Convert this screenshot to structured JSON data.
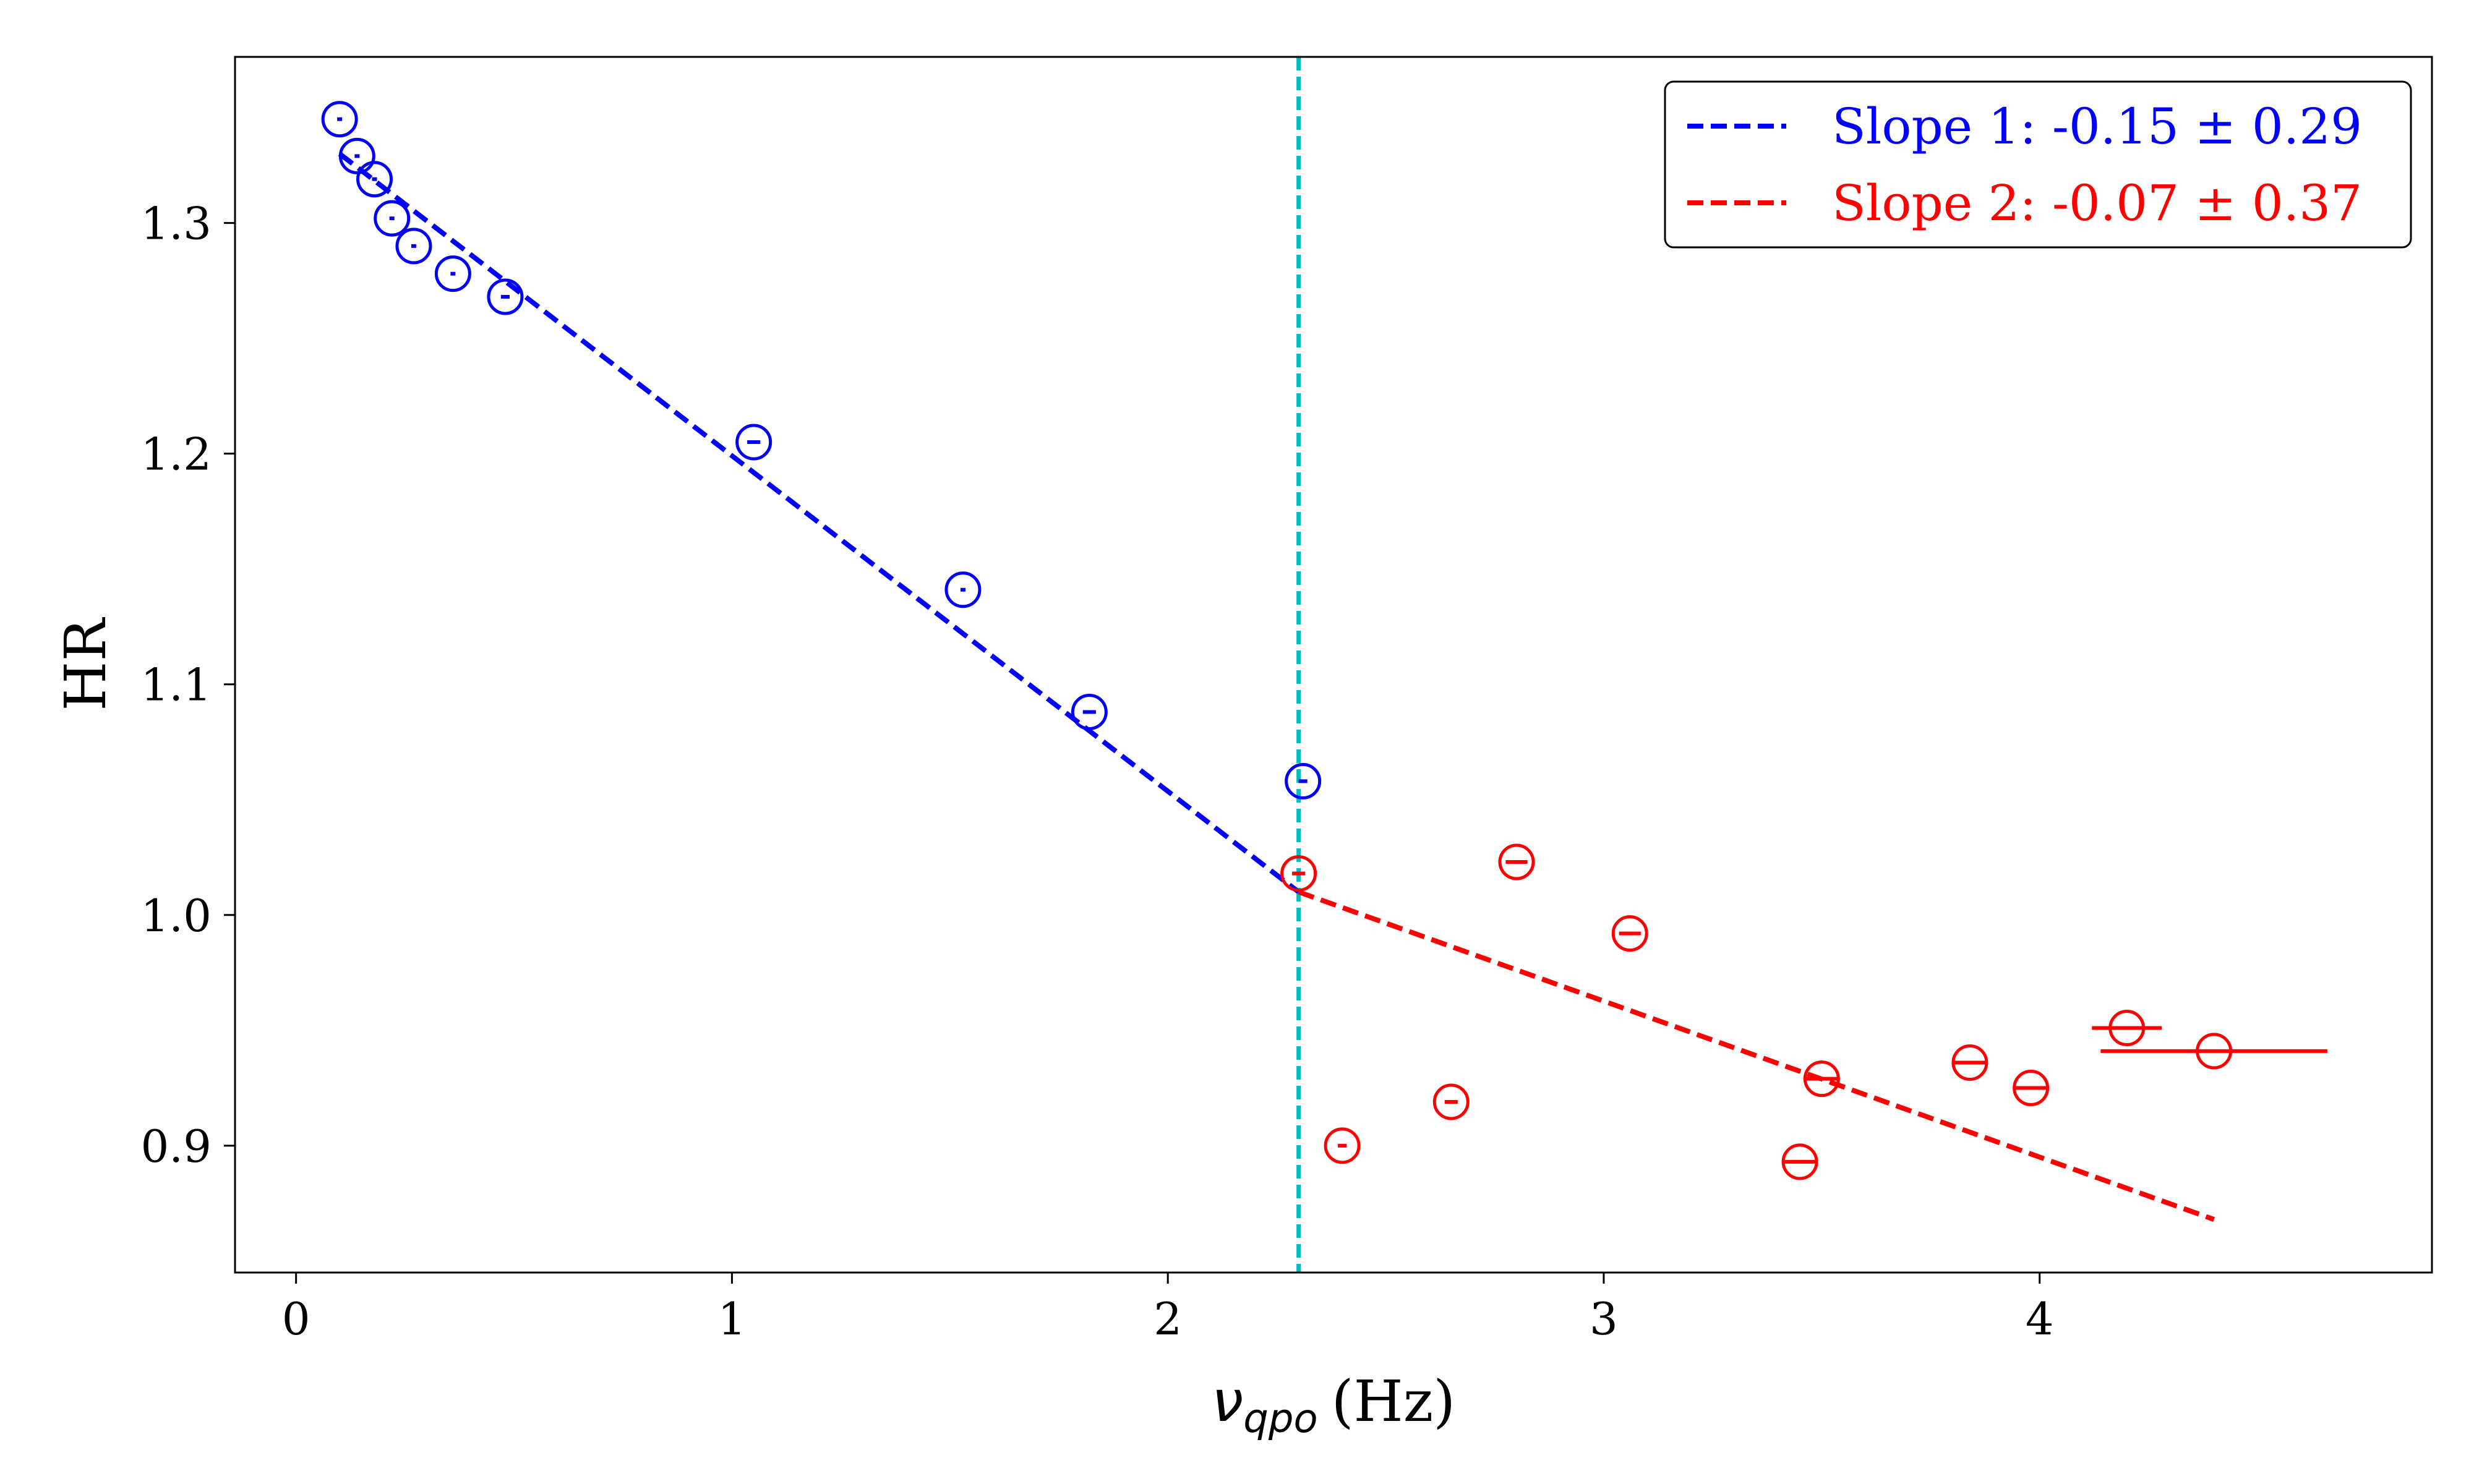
{
  "chart_data": {
    "type": "scatter",
    "xlabel_symbol": "ν",
    "xlabel_subscript": "qpo",
    "xlabel_unit": "(Hz)",
    "ylabel": "HR",
    "xlim": [
      -0.14,
      4.9
    ],
    "ylim": [
      0.845,
      1.372
    ],
    "x_ticks": [
      0,
      1,
      2,
      3,
      4
    ],
    "y_ticks": [
      0.9,
      1.0,
      1.1,
      1.2,
      1.3
    ],
    "x_tick_labels": [
      "0",
      "1",
      "2",
      "3",
      "4"
    ],
    "y_tick_labels": [
      "0.9",
      "1.0",
      "1.1",
      "1.2",
      "1.3"
    ],
    "breakpoint_x": 2.3,
    "breakpoint_color": "#00bfbf",
    "series": [
      {
        "name": "Slope 1: -0.15 ± 0.29",
        "color": "#0000ff",
        "points": [
          {
            "x": 0.1,
            "y": 1.345,
            "xerr": 0.0
          },
          {
            "x": 0.14,
            "y": 1.329,
            "xerr": 0.0
          },
          {
            "x": 0.18,
            "y": 1.319,
            "xerr": 0.0
          },
          {
            "x": 0.22,
            "y": 1.302,
            "xerr": 0.0
          },
          {
            "x": 0.27,
            "y": 1.29,
            "xerr": 0.0
          },
          {
            "x": 0.36,
            "y": 1.278,
            "xerr": 0.005
          },
          {
            "x": 0.48,
            "y": 1.268,
            "xerr": 0.01
          },
          {
            "x": 1.05,
            "y": 1.205,
            "xerr": 0.015
          },
          {
            "x": 1.53,
            "y": 1.141,
            "xerr": 0.005
          },
          {
            "x": 1.82,
            "y": 1.088,
            "xerr": 0.015
          },
          {
            "x": 2.31,
            "y": 1.058,
            "xerr": 0.01
          }
        ],
        "fit": {
          "x": [
            0.1,
            2.3
          ],
          "y": [
            1.33,
            1.01
          ]
        }
      },
      {
        "name": "Slope 2: -0.07 ± 0.37",
        "color": "#ff0000",
        "points": [
          {
            "x": 2.3,
            "y": 1.018,
            "xerr": 0.015
          },
          {
            "x": 2.4,
            "y": 0.9,
            "xerr": 0.01
          },
          {
            "x": 2.65,
            "y": 0.919,
            "xerr": 0.015
          },
          {
            "x": 2.8,
            "y": 1.023,
            "xerr": 0.025
          },
          {
            "x": 3.06,
            "y": 0.992,
            "xerr": 0.025
          },
          {
            "x": 3.45,
            "y": 0.893,
            "xerr": 0.035
          },
          {
            "x": 3.5,
            "y": 0.929,
            "xerr": 0.035
          },
          {
            "x": 3.84,
            "y": 0.936,
            "xerr": 0.035
          },
          {
            "x": 3.98,
            "y": 0.925,
            "xerr": 0.035
          },
          {
            "x": 4.2,
            "y": 0.951,
            "xerr": 0.08
          },
          {
            "x": 4.4,
            "y": 0.941,
            "xerr": 0.26
          }
        ],
        "fit": {
          "x": [
            2.3,
            4.4
          ],
          "y": [
            1.01,
            0.868
          ]
        }
      }
    ],
    "legend_position": "top-right"
  }
}
